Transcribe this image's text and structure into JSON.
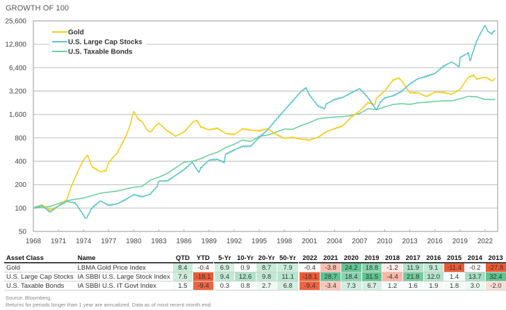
{
  "chart_data": {
    "type": "line",
    "title": "GROWTH OF 100",
    "xlabel": "",
    "ylabel": "",
    "yscale": "log2",
    "ylim": [
      50,
      25600
    ],
    "xlim": [
      1968,
      2023.5
    ],
    "yticks": [
      50,
      100,
      200,
      400,
      800,
      1600,
      3200,
      6400,
      12800,
      25600
    ],
    "ytick_labels": [
      "50",
      "100",
      "200",
      "400",
      "800",
      "1,600",
      "3,200",
      "6,400",
      "12,800",
      "25,600"
    ],
    "xticks": [
      1968,
      1971,
      1974,
      1977,
      1980,
      1983,
      1986,
      1989,
      1992,
      1995,
      1998,
      2001,
      2004,
      2007,
      2010,
      2013,
      2016,
      2019,
      2022
    ],
    "grid": true,
    "legend_position": "top-left",
    "series": [
      {
        "name": "Gold",
        "color": "#f5cc1a",
        "points": [
          [
            1968,
            100
          ],
          [
            1969,
            110
          ],
          [
            1970,
            95
          ],
          [
            1971,
            108
          ],
          [
            1972,
            130
          ],
          [
            1972.5,
            190
          ],
          [
            1973,
            250
          ],
          [
            1973.5,
            330
          ],
          [
            1974,
            420
          ],
          [
            1974.5,
            480
          ],
          [
            1975,
            340
          ],
          [
            1976,
            290
          ],
          [
            1976.7,
            310
          ],
          [
            1977,
            380
          ],
          [
            1978,
            500
          ],
          [
            1979,
            800
          ],
          [
            1979.5,
            1100
          ],
          [
            1980,
            1750
          ],
          [
            1980.5,
            1400
          ],
          [
            1981,
            1300
          ],
          [
            1981.5,
            1050
          ],
          [
            1982,
            950
          ],
          [
            1982.7,
            1150
          ],
          [
            1983,
            1250
          ],
          [
            1984,
            1000
          ],
          [
            1985,
            850
          ],
          [
            1986,
            950
          ],
          [
            1987,
            1250
          ],
          [
            1987.5,
            1350
          ],
          [
            1988,
            1100
          ],
          [
            1989,
            1000
          ],
          [
            1990,
            1050
          ],
          [
            1991,
            900
          ],
          [
            1992,
            880
          ],
          [
            1993,
            1050
          ],
          [
            1994,
            1020
          ],
          [
            1995,
            1000
          ],
          [
            1996,
            1060
          ],
          [
            1997,
            900
          ],
          [
            1998,
            790
          ],
          [
            1999,
            810
          ],
          [
            2000,
            760
          ],
          [
            2001,
            740
          ],
          [
            2002,
            800
          ],
          [
            2003,
            950
          ],
          [
            2004,
            1050
          ],
          [
            2005,
            1150
          ],
          [
            2006,
            1500
          ],
          [
            2007,
            1800
          ],
          [
            2008,
            2300
          ],
          [
            2008.8,
            2100
          ],
          [
            2009,
            2600
          ],
          [
            2010,
            3200
          ],
          [
            2011,
            4400
          ],
          [
            2011.7,
            4800
          ],
          [
            2012,
            4300
          ],
          [
            2013,
            3000
          ],
          [
            2014,
            3000
          ],
          [
            2015,
            2700
          ],
          [
            2016,
            3100
          ],
          [
            2017,
            3100
          ],
          [
            2018,
            2950
          ],
          [
            2019,
            3400
          ],
          [
            2020,
            4900
          ],
          [
            2020.6,
            5200
          ],
          [
            2021,
            4600
          ],
          [
            2022,
            4800
          ],
          [
            2022.8,
            4300
          ],
          [
            2023.2,
            4700
          ]
        ]
      },
      {
        "name": "U.S. Large Cap Stocks",
        "color": "#5bc3c8",
        "points": [
          [
            1968,
            100
          ],
          [
            1969,
            108
          ],
          [
            1970,
            88
          ],
          [
            1971,
            105
          ],
          [
            1972,
            120
          ],
          [
            1973,
            115
          ],
          [
            1974,
            80
          ],
          [
            1974.3,
            74
          ],
          [
            1975,
            100
          ],
          [
            1976,
            125
          ],
          [
            1977,
            110
          ],
          [
            1978,
            115
          ],
          [
            1979,
            130
          ],
          [
            1980,
            150
          ],
          [
            1981,
            140
          ],
          [
            1982,
            150
          ],
          [
            1982.8,
            190
          ],
          [
            1983,
            220
          ],
          [
            1984,
            220
          ],
          [
            1985,
            260
          ],
          [
            1986,
            310
          ],
          [
            1987,
            390
          ],
          [
            1987.8,
            290
          ],
          [
            1988,
            330
          ],
          [
            1989,
            420
          ],
          [
            1990,
            430
          ],
          [
            1990.8,
            380
          ],
          [
            1991,
            500
          ],
          [
            1992,
            560
          ],
          [
            1993,
            620
          ],
          [
            1994,
            620
          ],
          [
            1995,
            800
          ],
          [
            1996,
            1000
          ],
          [
            1997,
            1350
          ],
          [
            1998,
            1800
          ],
          [
            1999,
            2400
          ],
          [
            2000,
            3200
          ],
          [
            2000.6,
            3500
          ],
          [
            2001,
            2900
          ],
          [
            2002,
            2100
          ],
          [
            2002.8,
            1850
          ],
          [
            2003,
            2200
          ],
          [
            2004,
            2500
          ],
          [
            2005,
            2650
          ],
          [
            2006,
            3000
          ],
          [
            2007,
            3400
          ],
          [
            2008,
            2600
          ],
          [
            2009,
            1800
          ],
          [
            2009.5,
            2300
          ],
          [
            2010,
            2600
          ],
          [
            2011,
            2800
          ],
          [
            2012,
            3200
          ],
          [
            2013,
            4000
          ],
          [
            2014,
            4700
          ],
          [
            2015,
            5000
          ],
          [
            2016,
            5400
          ],
          [
            2017,
            6600
          ],
          [
            2018,
            7500
          ],
          [
            2018.9,
            6500
          ],
          [
            2019,
            8500
          ],
          [
            2020,
            9800
          ],
          [
            2020.2,
            7800
          ],
          [
            2021,
            14000
          ],
          [
            2021.5,
            18000
          ],
          [
            2022,
            22500
          ],
          [
            2022.3,
            19000
          ],
          [
            2022.8,
            17500
          ],
          [
            2023.2,
            19500
          ]
        ]
      },
      {
        "name": "U.S. Taxable Bonds",
        "color": "#6ecf9e",
        "points": [
          [
            1968,
            100
          ],
          [
            1970,
            105
          ],
          [
            1972,
            125
          ],
          [
            1974,
            135
          ],
          [
            1976,
            155
          ],
          [
            1978,
            165
          ],
          [
            1980,
            185
          ],
          [
            1981,
            190
          ],
          [
            1982,
            230
          ],
          [
            1983,
            250
          ],
          [
            1984,
            280
          ],
          [
            1985,
            330
          ],
          [
            1986,
            390
          ],
          [
            1987,
            400
          ],
          [
            1988,
            430
          ],
          [
            1989,
            480
          ],
          [
            1990,
            520
          ],
          [
            1991,
            600
          ],
          [
            1992,
            660
          ],
          [
            1993,
            750
          ],
          [
            1994,
            720
          ],
          [
            1995,
            840
          ],
          [
            1996,
            870
          ],
          [
            1997,
            950
          ],
          [
            1998,
            1040
          ],
          [
            1999,
            1030
          ],
          [
            2000,
            1150
          ],
          [
            2001,
            1250
          ],
          [
            2002,
            1400
          ],
          [
            2003,
            1450
          ],
          [
            2004,
            1480
          ],
          [
            2005,
            1500
          ],
          [
            2006,
            1550
          ],
          [
            2007,
            1650
          ],
          [
            2008,
            1900
          ],
          [
            2009,
            1850
          ],
          [
            2010,
            2000
          ],
          [
            2011,
            2150
          ],
          [
            2012,
            2200
          ],
          [
            2013,
            2150
          ],
          [
            2014,
            2250
          ],
          [
            2015,
            2300
          ],
          [
            2016,
            2350
          ],
          [
            2017,
            2400
          ],
          [
            2018,
            2400
          ],
          [
            2019,
            2550
          ],
          [
            2020,
            2750
          ],
          [
            2021,
            2700
          ],
          [
            2022,
            2500
          ],
          [
            2023.2,
            2500
          ]
        ]
      }
    ]
  },
  "table": {
    "headers": {
      "asset_class": "Asset Class",
      "name": "Name",
      "trailing": [
        "QTD",
        "YTD"
      ],
      "annualized": [
        "5-Yr",
        "10-Yr",
        "20-Yr",
        "50-Yr"
      ],
      "years": [
        "2022",
        "2021",
        "2020",
        "2019",
        "2018",
        "2017",
        "2016",
        "2015",
        "2014",
        "2013"
      ]
    },
    "rows": [
      {
        "asset_class": "Gold",
        "name": "LBMA Gold Price Index",
        "trailing": [
          "8.4",
          "-0.4"
        ],
        "annualized": [
          "6.9",
          "0.9",
          "8.7",
          "7.9"
        ],
        "years": [
          "-0.4",
          "-3.8",
          "24.2",
          "18.8",
          "-1.2",
          "11.9",
          "9.1",
          "-11.4",
          "-0.2",
          "-27.8"
        ]
      },
      {
        "asset_class": "U.S. Large Cap Stocks",
        "name": "IA SBBI U.S. Large Stock Index",
        "trailing": [
          "7.6",
          "-18.1"
        ],
        "annualized": [
          "9.4",
          "12.6",
          "9.8",
          "11.1"
        ],
        "years": [
          "-18.1",
          "28.7",
          "18.4",
          "31.5",
          "-4.4",
          "21.8",
          "12.0",
          "1.4",
          "13.7",
          "32.4"
        ]
      },
      {
        "asset_class": "U.S. Taxable Bonds",
        "name": "IA SBBI U.S. IT Govt Index",
        "trailing": [
          "1.5",
          "-9.4"
        ],
        "annualized": [
          "0.3",
          "0.8",
          "2.7",
          "6.8"
        ],
        "years": [
          "-9.4",
          "-3.4",
          "7.3",
          "6.7",
          "1.2",
          "1.6",
          "1.9",
          "1.8",
          "3.0",
          "-2.0"
        ]
      }
    ]
  },
  "colors": {
    "positive_strong": "#5ec490",
    "negative_strong": "#ee5a35",
    "grid": "#bdbdbd",
    "axis": "#9e9e9e"
  },
  "footer": {
    "source": "Source: Bloomberg.",
    "note": "Returns for periods longer than 1 year are annualized. Data as of most recent month end."
  }
}
